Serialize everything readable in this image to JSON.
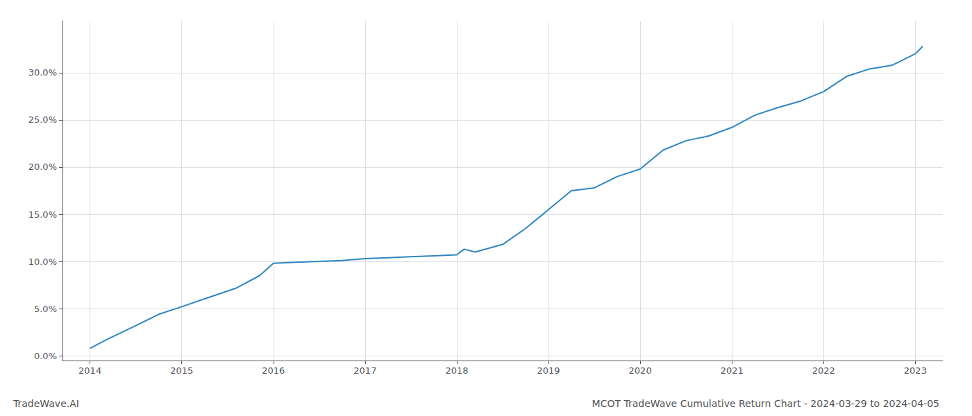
{
  "chart_data": {
    "type": "line",
    "title": "MCOT TradeWave Cumulative Return Chart - 2024-03-29 to 2024-04-05",
    "annotations": [
      "TradeWave.AI"
    ],
    "x": [
      2014.0,
      2014.2,
      2014.5,
      2014.75,
      2015.0,
      2015.3,
      2015.6,
      2015.85,
      2016.0,
      2016.2,
      2016.5,
      2016.75,
      2017.0,
      2017.25,
      2017.5,
      2017.75,
      2018.0,
      2018.08,
      2018.2,
      2018.5,
      2018.75,
      2019.0,
      2019.25,
      2019.5,
      2019.75,
      2020.0,
      2020.25,
      2020.5,
      2020.75,
      2021.0,
      2021.25,
      2021.5,
      2021.75,
      2022.0,
      2022.25,
      2022.5,
      2022.75,
      2023.0,
      2023.08
    ],
    "values": [
      0.008,
      0.018,
      0.032,
      0.044,
      0.052,
      0.062,
      0.072,
      0.085,
      0.098,
      0.099,
      0.1,
      0.101,
      0.103,
      0.104,
      0.105,
      0.106,
      0.107,
      0.113,
      0.11,
      0.118,
      0.135,
      0.155,
      0.175,
      0.178,
      0.19,
      0.198,
      0.218,
      0.228,
      0.233,
      0.242,
      0.255,
      0.263,
      0.27,
      0.28,
      0.296,
      0.304,
      0.308,
      0.32,
      0.328
    ],
    "color": "#2e86c1",
    "xlim": [
      2013.7,
      2023.3
    ],
    "ylim": [
      -0.005,
      0.355
    ],
    "xticks": [
      2014,
      2015,
      2016,
      2017,
      2018,
      2019,
      2020,
      2021,
      2022,
      2023
    ],
    "yticks": [
      {
        "value": 0.0,
        "label": "0.0%"
      },
      {
        "value": 0.05,
        "label": "5.0%"
      },
      {
        "value": 0.1,
        "label": "10.0%"
      },
      {
        "value": 0.15,
        "label": "15.0%"
      },
      {
        "value": 0.2,
        "label": "20.0%"
      },
      {
        "value": 0.25,
        "label": "25.0%"
      },
      {
        "value": 0.3,
        "label": "30.0%"
      }
    ],
    "grid": true
  }
}
